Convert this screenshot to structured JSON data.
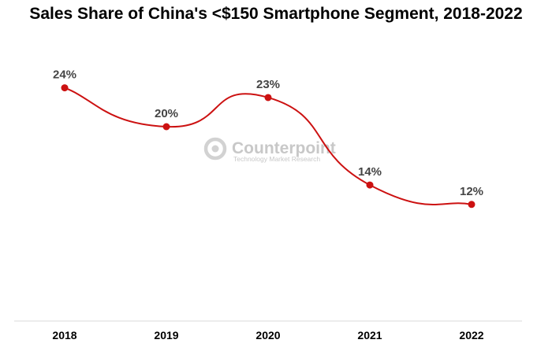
{
  "chart_data": {
    "type": "line",
    "title": "Sales Share of China's <$150 Smartphone Segment, 2018-2022",
    "xlabel": "",
    "ylabel": "",
    "categories": [
      "2018",
      "2019",
      "2020",
      "2021",
      "2022"
    ],
    "series": [
      {
        "values": [
          24,
          20,
          23,
          14,
          12
        ],
        "labels": [
          "24%",
          "20%",
          "23%",
          "14%",
          "12%"
        ],
        "color": "#cc1111"
      }
    ],
    "ylim": [
      0,
      27
    ],
    "grid": false,
    "legend": "none"
  },
  "watermark": {
    "name": "Counterpoint",
    "tagline": "Technology Market Research",
    "icon": "counterpoint-logo-icon",
    "color": "#c8c8c8"
  }
}
